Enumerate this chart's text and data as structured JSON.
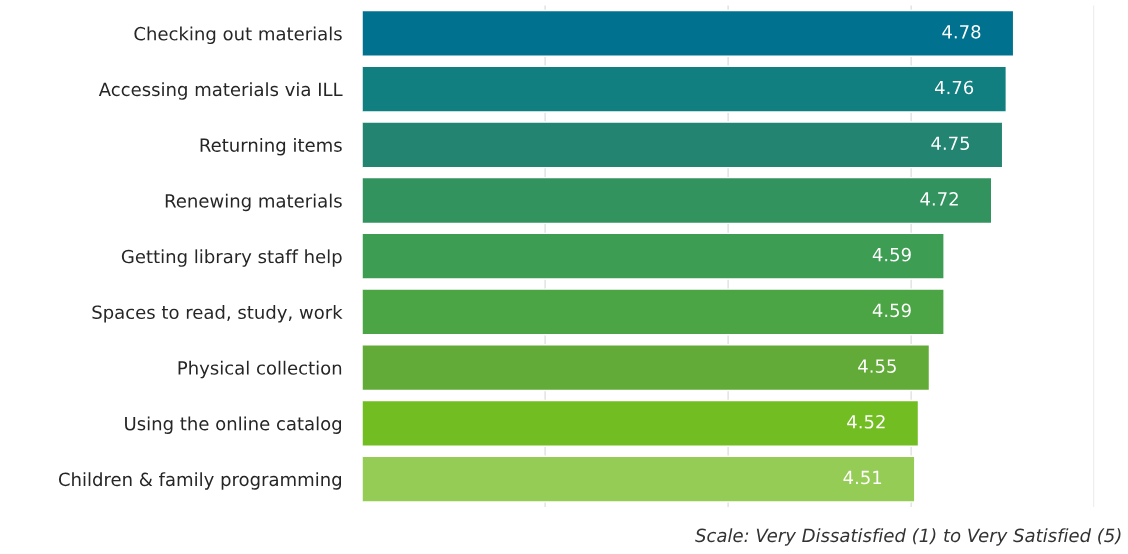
{
  "chart_data": {
    "type": "bar",
    "orientation": "horizontal",
    "categories": [
      "Checking out materials",
      "Accessing materials via ILL",
      "Returning items",
      "Renewing materials",
      "Getting library staff help",
      "Spaces to read, study, work",
      "Physical collection",
      "Using the online catalog",
      "Children & family programming"
    ],
    "values": [
      4.78,
      4.76,
      4.75,
      4.72,
      4.59,
      4.59,
      4.55,
      4.52,
      4.51
    ],
    "colors": [
      "#00728f",
      "#117f7f",
      "#238471",
      "#33935f",
      "#3d9d52",
      "#4ca545",
      "#62ab38",
      "#72bd21",
      "#95cc55"
    ],
    "xlim": [
      3,
      5
    ],
    "xticks": [
      {
        "value": 3.5,
        "label": null
      },
      {
        "value": 4,
        "label": null
      },
      {
        "value": 4.5,
        "label": null
      },
      {
        "value": 5,
        "label": null
      }
    ],
    "grid": "x",
    "tick_labels": "y",
    "data_labels": true,
    "annotations": [
      "Scale: Very Dissatisfied (1) to Very Satisfied (5)"
    ]
  }
}
